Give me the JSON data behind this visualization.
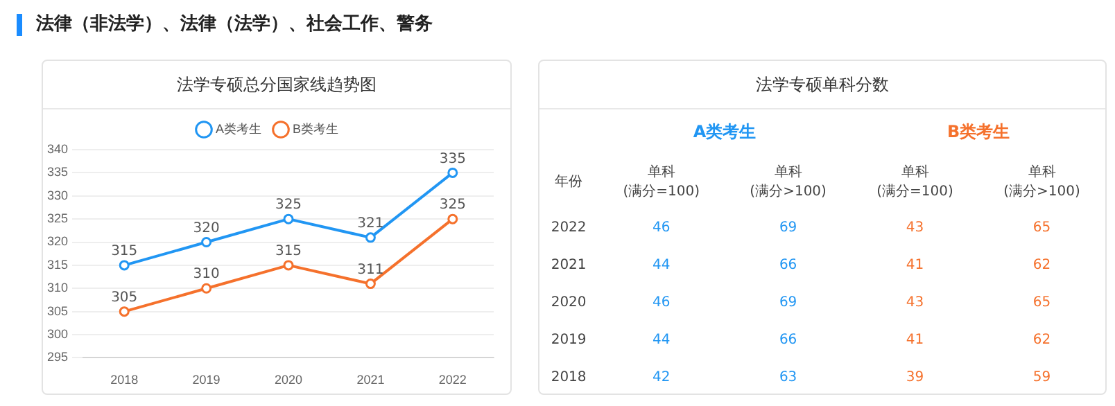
{
  "chart_data": [
    {
      "type": "line",
      "title": "法学专硕总分国家线趋势图",
      "annotations": [
        "法律（非法学）、法律（法学）、社会工作、警务"
      ],
      "categories": [
        "2018",
        "2019",
        "2020",
        "2021",
        "2022"
      ],
      "series": [
        {
          "name": "A类考生",
          "color": "#2196f3",
          "values": [
            315,
            320,
            325,
            321,
            335
          ]
        },
        {
          "name": "B类考生",
          "color": "#f5712c",
          "values": [
            305,
            310,
            315,
            311,
            325
          ]
        }
      ],
      "ylim": [
        295,
        340
      ],
      "yticks": [
        295,
        300,
        305,
        310,
        315,
        320,
        325,
        330,
        335,
        340
      ],
      "grid": "y",
      "legend": "top",
      "marker": "circle",
      "line_style": "solid",
      "data_labels": true
    },
    {
      "type": "heatmap",
      "title": "法学专硕单科分数",
      "ylabel": "年份",
      "annotations": [
        "A类考生",
        "B类考生"
      ],
      "categories": [
        "单科\n(满分=100)",
        "单科\n(满分>100)",
        "单科\n(满分=100)",
        "单科\n(满分>100)"
      ],
      "colors": [
        "#2196f3",
        "#2196f3",
        "#f5712c",
        "#f5712c"
      ],
      "y_categories": [
        "2022",
        "2021",
        "2020",
        "2019",
        "2018"
      ],
      "data_labels": true,
      "cells": [
        [
          46,
          69,
          43,
          65
        ],
        [
          44,
          66,
          41,
          62
        ],
        [
          46,
          69,
          43,
          65
        ],
        [
          44,
          66,
          41,
          62
        ],
        [
          42,
          63,
          39,
          59
        ]
      ]
    }
  ]
}
